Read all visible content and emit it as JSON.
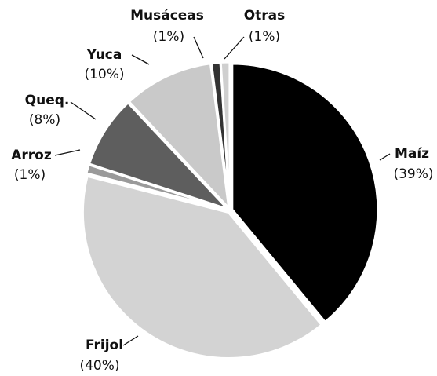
{
  "chart_data": {
    "type": "pie",
    "categories": [
      "Maíz",
      "Frijol",
      "Arroz",
      "Queq.",
      "Yuca",
      "Musáceas",
      "Otras"
    ],
    "values": [
      39,
      40,
      1,
      8,
      10,
      1,
      1
    ],
    "value_labels": [
      "(39%)",
      "(40%)",
      "(1%)",
      "(8%)",
      "(10%)",
      "(1%)",
      "(1%)"
    ],
    "colors": [
      "#000000",
      "#d3d3d3",
      "#9a9a9a",
      "#5e5e5e",
      "#c9c9c9",
      "#333333",
      "#cfcfcf"
    ]
  }
}
